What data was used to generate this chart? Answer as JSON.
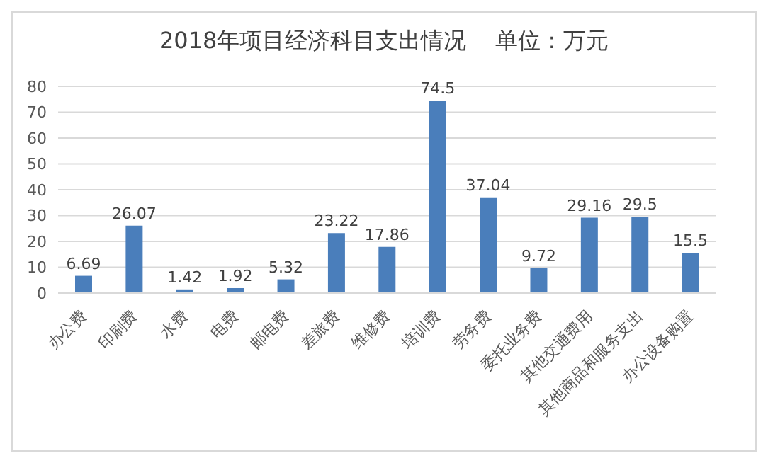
{
  "chart_data": {
    "type": "bar",
    "title": "2018年项目经济科目支出情况    单位：万元",
    "categories": [
      "办公费",
      "印刷费",
      "水费",
      "电费",
      "邮电费",
      "差旅费",
      "维修费",
      "培训费",
      "劳务费",
      "委托业务费",
      "其他交通费用",
      "其他商品和服务支出",
      "办公设备购置"
    ],
    "values": [
      6.69,
      26.07,
      1.42,
      1.92,
      5.32,
      23.22,
      17.86,
      74.5,
      37.04,
      9.72,
      29.16,
      29.5,
      15.5
    ],
    "color": "#4a7ebb",
    "ylim": [
      0,
      80
    ],
    "yticks": [
      0,
      10,
      20,
      30,
      40,
      50,
      60,
      70,
      80
    ],
    "grid": "y",
    "data_labels": true
  }
}
